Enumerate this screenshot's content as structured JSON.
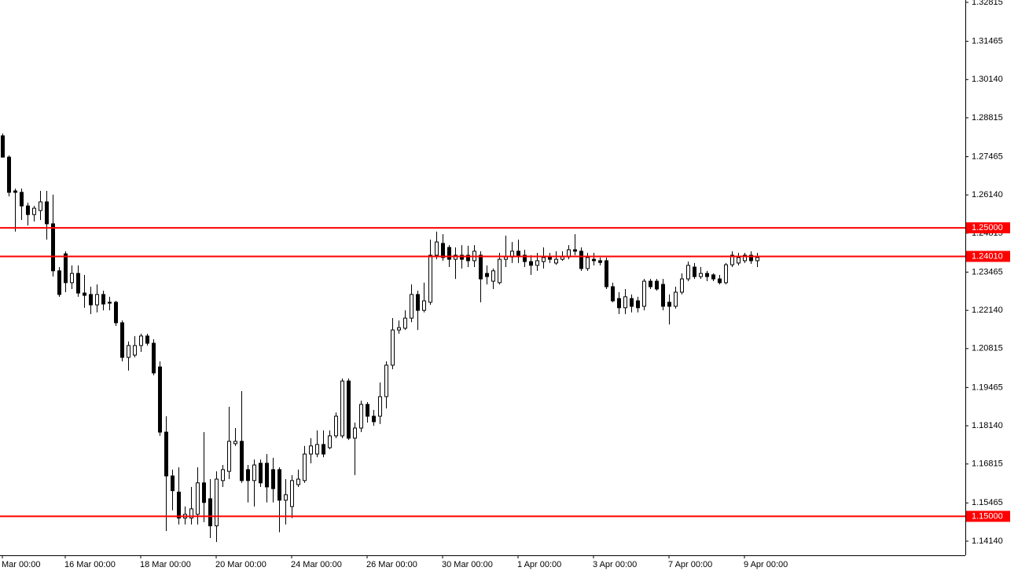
{
  "chart_data": {
    "type": "candlestick",
    "categories": [
      "Mar 00:00",
      null,
      null,
      null,
      null,
      null,
      null,
      null,
      null,
      null,
      "16 Mar 00:00",
      null,
      null,
      null,
      null,
      null,
      null,
      null,
      null,
      null,
      null,
      null,
      "18 Mar 00:00",
      null,
      null,
      null,
      null,
      null,
      null,
      null,
      null,
      null,
      null,
      null,
      "20 Mar 00:00",
      null,
      null,
      null,
      null,
      null,
      null,
      null,
      null,
      null,
      null,
      null,
      "24 Mar 00:00",
      null,
      null,
      null,
      null,
      null,
      null,
      null,
      null,
      null,
      null,
      null,
      "26 Mar 00:00",
      null,
      null,
      null,
      null,
      null,
      null,
      null,
      null,
      null,
      null,
      null,
      "30 Mar 00:00",
      null,
      null,
      null,
      null,
      null,
      null,
      null,
      null,
      null,
      null,
      null,
      "1 Apr 00:00",
      null,
      null,
      null,
      null,
      null,
      null,
      null,
      null,
      null,
      null,
      null,
      "3 Apr 00:00",
      null,
      null,
      null,
      null,
      null,
      null,
      null,
      null,
      null,
      null,
      null,
      "7 Apr 00:00",
      null,
      null,
      null,
      null,
      null,
      null,
      null,
      null,
      null,
      null,
      null,
      "9 Apr 00:00",
      null,
      null
    ],
    "ohlc": [
      [
        1.2819,
        1.2827,
        1.2745,
        1.2745
      ],
      [
        1.2745,
        1.2751,
        1.2609,
        1.2623
      ],
      [
        1.2628,
        1.2636,
        1.2487,
        1.2623
      ],
      [
        1.2623,
        1.2636,
        1.2527,
        1.2576
      ],
      [
        1.2576,
        1.2587,
        1.2508,
        1.2546
      ],
      [
        1.2546,
        1.2576,
        1.2522,
        1.2568
      ],
      [
        1.256,
        1.2628,
        1.2527,
        1.259
      ],
      [
        1.259,
        1.2628,
        1.2459,
        1.2514
      ],
      [
        1.2514,
        1.2615,
        1.2331,
        1.2351
      ],
      [
        1.2351,
        1.2364,
        1.2261,
        1.2269
      ],
      [
        1.241,
        1.2419,
        1.2277,
        1.231
      ],
      [
        1.231,
        1.237,
        1.2288,
        1.2342
      ],
      [
        1.2342,
        1.237,
        1.2261,
        1.2274
      ],
      [
        1.2274,
        1.2337,
        1.2223,
        1.2266
      ],
      [
        1.2269,
        1.2296,
        1.2201,
        1.2233
      ],
      [
        1.2233,
        1.2304,
        1.2207,
        1.2269
      ],
      [
        1.2269,
        1.2282,
        1.2214,
        1.2236
      ],
      [
        1.2242,
        1.2261,
        1.2214,
        1.2239
      ],
      [
        1.2242,
        1.2247,
        1.216,
        1.2171
      ],
      [
        1.2171,
        1.2179,
        1.2037,
        1.2051
      ],
      [
        1.2051,
        1.2106,
        1.2005,
        1.2092
      ],
      [
        1.2059,
        1.2125,
        1.2051,
        1.2092
      ],
      [
        1.2092,
        1.2133,
        1.207,
        1.2125
      ],
      [
        1.2125,
        1.2133,
        1.2092,
        1.21
      ],
      [
        1.21,
        1.2114,
        1.1989,
        1.1997
      ],
      [
        1.2018,
        1.2037,
        1.1779,
        1.1792
      ],
      [
        1.1792,
        1.1847,
        1.1449,
        1.164
      ],
      [
        1.164,
        1.1662,
        1.1521,
        1.1589
      ],
      [
        1.1584,
        1.167,
        1.1472,
        1.1494
      ],
      [
        1.1494,
        1.1534,
        1.1472,
        1.1507
      ],
      [
        1.1494,
        1.1602,
        1.1472,
        1.1526
      ],
      [
        1.1507,
        1.167,
        1.1472,
        1.1616
      ],
      [
        1.1616,
        1.1792,
        1.148,
        1.1548
      ],
      [
        1.1561,
        1.1629,
        1.1425,
        1.1467
      ],
      [
        1.1467,
        1.1656,
        1.1411,
        1.1629
      ],
      [
        1.1624,
        1.1678,
        1.1602,
        1.1662
      ],
      [
        1.1656,
        1.188,
        1.1629,
        1.176
      ],
      [
        1.1752,
        1.1806,
        1.1744,
        1.176
      ],
      [
        1.176,
        1.1934,
        1.1616,
        1.1624
      ],
      [
        1.1662,
        1.1678,
        1.1548,
        1.1624
      ],
      [
        1.1624,
        1.1697,
        1.1534,
        1.1678
      ],
      [
        1.1684,
        1.1697,
        1.1602,
        1.1616
      ],
      [
        1.1684,
        1.1716,
        1.1548,
        1.1602
      ],
      [
        1.1662,
        1.1703,
        1.1548,
        1.1596
      ],
      [
        1.1662,
        1.167,
        1.1445,
        1.1556
      ],
      [
        1.1556,
        1.1629,
        1.1472,
        1.1575
      ],
      [
        1.1534,
        1.1643,
        1.1494,
        1.1624
      ],
      [
        1.161,
        1.1662,
        1.1602,
        1.1629
      ],
      [
        1.1624,
        1.1744,
        1.1616,
        1.1716
      ],
      [
        1.1716,
        1.1771,
        1.1684,
        1.1744
      ],
      [
        1.1716,
        1.1798,
        1.1705,
        1.1749
      ],
      [
        1.1749,
        1.1798,
        1.1705,
        1.1716
      ],
      [
        1.1738,
        1.1798,
        1.1733,
        1.1779
      ],
      [
        1.1779,
        1.186,
        1.1771,
        1.1847
      ],
      [
        1.1779,
        1.1978,
        1.1771,
        1.1969
      ],
      [
        1.1969,
        1.1978,
        1.1765,
        1.1771
      ],
      [
        1.1771,
        1.1825,
        1.1643,
        1.1806
      ],
      [
        1.1806,
        1.1901,
        1.1792,
        1.1888
      ],
      [
        1.1888,
        1.1896,
        1.1825,
        1.1847
      ],
      [
        1.1847,
        1.1869,
        1.1814,
        1.1828
      ],
      [
        1.1847,
        1.1964,
        1.182,
        1.1915
      ],
      [
        1.1915,
        1.2037,
        1.1874,
        1.2024
      ],
      [
        1.2024,
        1.2187,
        1.201,
        1.2146
      ],
      [
        1.2146,
        1.2179,
        1.2133,
        1.2154
      ],
      [
        1.2152,
        1.2214,
        1.2146,
        1.2187
      ],
      [
        1.2187,
        1.2304,
        1.2173,
        1.2269
      ],
      [
        1.2269,
        1.2282,
        1.2146,
        1.2214
      ],
      [
        1.2214,
        1.231,
        1.2207,
        1.2247
      ],
      [
        1.2242,
        1.2459,
        1.2233,
        1.2405
      ],
      [
        1.2405,
        1.2487,
        1.2391,
        1.2451
      ],
      [
        1.2446,
        1.2478,
        1.2386,
        1.2397
      ],
      [
        1.2432,
        1.244,
        1.2364,
        1.2391
      ],
      [
        1.2391,
        1.2432,
        1.2323,
        1.2405
      ],
      [
        1.2405,
        1.244,
        1.2359,
        1.2391
      ],
      [
        1.2405,
        1.2438,
        1.2364,
        1.2386
      ],
      [
        1.2386,
        1.244,
        1.2364,
        1.2419
      ],
      [
        1.2405,
        1.2419,
        1.2242,
        1.2323
      ],
      [
        1.2342,
        1.237,
        1.2304,
        1.2331
      ],
      [
        1.2315,
        1.2359,
        1.2288,
        1.2351
      ],
      [
        1.231,
        1.2413,
        1.2304,
        1.2391
      ],
      [
        1.2391,
        1.2473,
        1.2364,
        1.2399
      ],
      [
        1.2399,
        1.2451,
        1.2378,
        1.2419
      ],
      [
        1.2419,
        1.2459,
        1.2378,
        1.2405
      ],
      [
        1.2405,
        1.2424,
        1.2364,
        1.2383
      ],
      [
        1.2383,
        1.2405,
        1.2337,
        1.237
      ],
      [
        1.237,
        1.2413,
        1.2351,
        1.2386
      ],
      [
        1.2383,
        1.2432,
        1.2359,
        1.2397
      ],
      [
        1.2397,
        1.2413,
        1.2378,
        1.2391
      ],
      [
        1.2378,
        1.2419,
        1.2372,
        1.2391
      ],
      [
        1.2391,
        1.2419,
        1.2386,
        1.2399
      ],
      [
        1.2399,
        1.244,
        1.2391,
        1.2424
      ],
      [
        1.2424,
        1.2478,
        1.2405,
        1.2419
      ],
      [
        1.2419,
        1.2432,
        1.2351,
        1.2359
      ],
      [
        1.2359,
        1.2413,
        1.2351,
        1.2397
      ],
      [
        1.2391,
        1.2413,
        1.237,
        1.2386
      ],
      [
        1.2386,
        1.2397,
        1.237,
        1.238
      ],
      [
        1.2386,
        1.2397,
        1.2288,
        1.2296
      ],
      [
        1.2296,
        1.231,
        1.2242,
        1.2247
      ],
      [
        1.2255,
        1.2277,
        1.2201,
        1.2223
      ],
      [
        1.2223,
        1.2288,
        1.2201,
        1.2261
      ],
      [
        1.2255,
        1.2269,
        1.2207,
        1.2228
      ],
      [
        1.2247,
        1.2261,
        1.2207,
        1.2223
      ],
      [
        1.2228,
        1.2323,
        1.2214,
        1.2315
      ],
      [
        1.2315,
        1.2323,
        1.2288,
        1.2296
      ],
      [
        1.2315,
        1.2323,
        1.2282,
        1.2288
      ],
      [
        1.2304,
        1.2323,
        1.2214,
        1.2228
      ],
      [
        1.2242,
        1.2269,
        1.2165,
        1.2228
      ],
      [
        1.2228,
        1.2296,
        1.222,
        1.2277
      ],
      [
        1.2277,
        1.2342,
        1.2269,
        1.2323
      ],
      [
        1.2323,
        1.2383,
        1.2315,
        1.237
      ],
      [
        1.2364,
        1.2378,
        1.2323,
        1.2331
      ],
      [
        1.2331,
        1.2364,
        1.2323,
        1.2342
      ],
      [
        1.2342,
        1.2351,
        1.2315,
        1.2331
      ],
      [
        1.2337,
        1.2342,
        1.2315,
        1.2323
      ],
      [
        1.2323,
        1.2337,
        1.2304,
        1.231
      ],
      [
        1.231,
        1.2378,
        1.2304,
        1.2372
      ],
      [
        1.2372,
        1.2419,
        1.2364,
        1.2405
      ],
      [
        1.2378,
        1.2413,
        1.237,
        1.2397
      ],
      [
        1.2386,
        1.2413,
        1.2378,
        1.2405
      ],
      [
        1.2405,
        1.2419,
        1.2375,
        1.2386
      ],
      [
        1.2386,
        1.2413,
        1.2364,
        1.2397
      ]
    ],
    "up_color": "#ffffff",
    "down_color": "#000000",
    "ylim": [
      1.1365,
      1.32897
    ],
    "yticks": [
      1.32815,
      1.31465,
      {
        "value": 1.3014,
        "label": "1.30140"
      },
      1.28815,
      1.27465,
      {
        "value": 1.2614,
        "label": "1.26140"
      },
      1.24815,
      1.23465,
      {
        "value": 1.2214,
        "label": "1.22140"
      },
      1.20815,
      1.19465,
      {
        "value": 1.1814,
        "label": "1.18140"
      },
      1.16815,
      1.15465,
      {
        "value": 1.1414,
        "label": "1.14140"
      }
    ],
    "hlines": [
      {
        "value": 1.25,
        "label": "1.25000",
        "color": "#ff0000"
      },
      {
        "value": 1.2401,
        "label": "1.24010",
        "color": "#ff0000"
      },
      {
        "value": 1.15,
        "label": "1.15000",
        "color": "#ff0000"
      }
    ]
  }
}
